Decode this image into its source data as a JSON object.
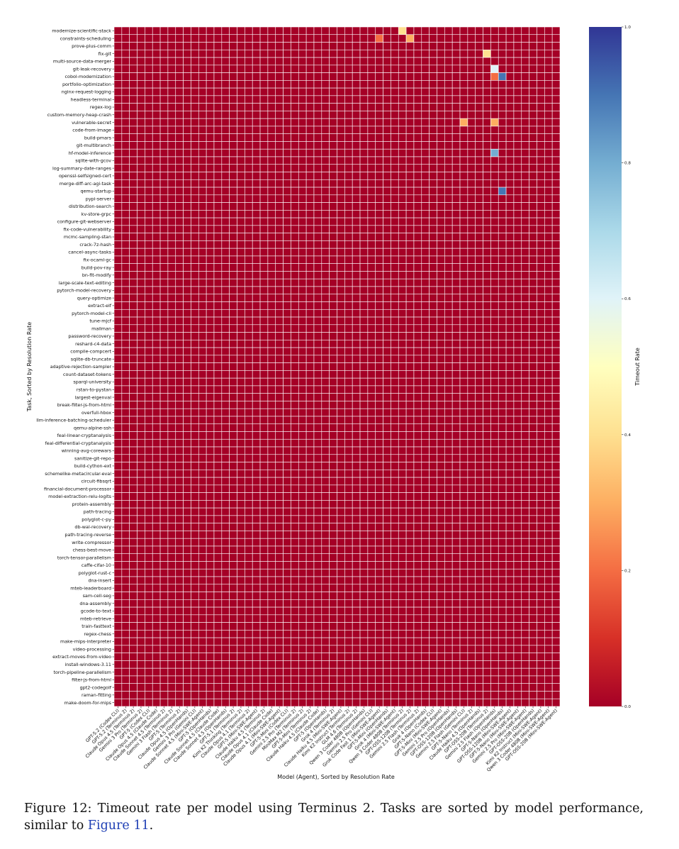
{
  "chart_data": {
    "type": "heatmap",
    "xlabel": "Model (Agent), Sorted by Resolution Rate",
    "ylabel": "Task, Sorted by Resolution Rate",
    "colorbar_label": "Timeout Rate",
    "colorbar_range": [
      0.0,
      1.0
    ],
    "colorbar_ticks": [
      "0.0",
      "0.2",
      "0.4",
      "0.6",
      "0.8",
      "1.0"
    ],
    "colormap": [
      "#a50026",
      "#d73027",
      "#f46d43",
      "#fdae61",
      "#fee090",
      "#ffffbf",
      "#e0f3f8",
      "#abd9e9",
      "#74add1",
      "#4575b4",
      "#313695"
    ],
    "grid_line_color": "#ffffff",
    "tasks": [
      "modernize-scientific-stack",
      "constraints-scheduling",
      "prove-plus-comm",
      "fix-git",
      "multi-source-data-merger",
      "git-leak-recovery",
      "cobol-modernization",
      "portfolio-optimization",
      "nginx-request-logging",
      "headless-terminal",
      "regex-log",
      "custom-memory-heap-crash",
      "vulnerable-secret",
      "code-from-image",
      "build-pmars",
      "git-multibranch",
      "hf-model-inference",
      "sqlite-with-gcov",
      "log-summary-date-ranges",
      "openssl-selfsigned-cert",
      "merge-diff-arc-agi-task",
      "qemu-startup",
      "pypi-server",
      "distribution-search",
      "kv-store-grpc",
      "configure-git-webserver",
      "fix-code-vulnerability",
      "mcmc-sampling-stan",
      "crack-7z-hash",
      "cancel-async-tasks",
      "fix-ocaml-gc",
      "build-pov-ray",
      "bn-fit-modify",
      "large-scale-text-editing",
      "pytorch-model-recovery",
      "query-optimize",
      "extract-elf",
      "pytorch-model-cli",
      "tune-mjcf",
      "mailman",
      "password-recovery",
      "reshard-c4-data",
      "compile-compcert",
      "sqlite-db-truncate",
      "adaptive-rejection-sampler",
      "count-dataset-tokens",
      "sparql-university",
      "rstan-to-pystan",
      "largest-eigenval",
      "break-filter-js-from-html",
      "overfull-hbox",
      "llm-inference-batching-scheduler",
      "qemu-alpine-ssh",
      "feal-linear-cryptanalysis",
      "feal-differential-cryptanalysis",
      "winning-avg-corewars",
      "sanitize-git-repo",
      "build-cython-ext",
      "schemelike-metacircular-eval",
      "circuit-fibsqrt",
      "financial-document-processor",
      "model-extraction-relu-logits",
      "protein-assembly",
      "path-tracing",
      "polyglot-c-py",
      "db-wal-recovery",
      "path-tracing-reverse",
      "write-compressor",
      "chess-best-move",
      "torch-tensor-parallelism",
      "caffe-cifar-10",
      "polyglot-rust-c",
      "dna-insert",
      "mteb-leaderboard",
      "sam-cell-seg",
      "dna-assembly",
      "gcode-to-text",
      "mteb-retrieve",
      "train-fasttext",
      "regex-chess",
      "make-mips-interpreter",
      "video-processing",
      "extract-moves-from-video",
      "install-windows-3.11",
      "torch-pipeline-parallelism",
      "filter-js-from-html",
      "gpt2-codegolf",
      "raman-fitting",
      "make-doom-for-mips"
    ],
    "models": [
      "GPT-5.2 (Codex CLI)",
      "GPT-5.2 (Terminus 2)",
      "Claude Opus 4.5 (Terminus 2)",
      "Gemini 3 Pro (Terminus 2)",
      "GPT-5 (Codex CLI)",
      "Claude Opus 4.5 (Claude Code)",
      "Claude Sonnet 4.5 (Terminus 2)",
      "Gemini 3 Flash (Terminus 2)",
      "GPT-5 (Terminus 2)",
      "Claude Opus 4.5 (OpenHands)",
      "Gemini 3 Pro (Gemini CLI)",
      "Claude Sonnet 4.5 (Mini-SWE-Agent)",
      "GPT-5 (OpenHands)",
      "Claude Sonnet 4.5 (Claude Code)",
      "Claude Sonnet 4.5 (OpenHands)",
      "GPT-5.1 (Terminus 2)",
      "Kimi K2 Thinking (Terminus 2)",
      "Claude Opus 4.1 (Terminus 2)",
      "GPT-5 (Mini-SWE-Agent)",
      "Claude Haiku 4.5 (Terminus 2)",
      "Claude Opus 4.1 (Claude Code)",
      "Claude Opus 4.1 (Mini-SWE-Agent)",
      "GPT-5-Mini (Codex CLI)",
      "Gemini 2.5 Pro (Terminus 2)",
      "MiniMax M2 (Terminus 2)",
      "GPT-5-Mini (Terminus 2)",
      "Claude Haiku 4.5 (Claude Code)",
      "GPT-5 (OpenHands)",
      "Grok 4 (Terminus 2)",
      "Claude Haiku 4.5 (Mini-SWE-Agent)",
      "Kimi K2 Instruct (Terminus 2)",
      "GLM 4.6 (Terminus 2)",
      "Qwen 3 Coder 480B (OpenHands)",
      "Gemini 2.5 Pro (Gemini CLI)",
      "Grok Code Fast 1 (Mini-SWE-Agent)",
      "GPT-5-Mini (OpenHands)",
      "Grok 4 (Mini-SWE-Agent)",
      "Qwen 3 Coder 480B (Terminus 2)",
      "GPT-OSS-120B (Terminus 2)",
      "Gemini 2.5 Flash (Terminus 2)",
      "Grok 4 (OpenHands)",
      "GPT-5-Nano (Codex CLI)",
      "GPT-5-Mini (Mini-SWE-Agent)",
      "Gemini 2.5 Pro (OpenHands)",
      "GPT-OSS-120B (OpenHands)",
      "Gemini 2.5 Flash (Gemini CLI)",
      "GPT-5-Nano (Terminus 2)",
      "Claude Haiku 4.5 (OpenHands)",
      "GPT-OSS-20B (Terminus 2)",
      "Gemini 2.5 Flash (OpenHands)",
      "GPT-5-Nano (OpenHands)",
      "GPT-OSS-120B (Mini-SWE-Agent)",
      "GPT-5-Nano (Mini-SWE-Agent)",
      "Gemini 2.5 Pro (Mini-SWE-Agent)",
      "GPT-OSS-20B (OpenHands)",
      "Kimi K2 Instruct (Mini-SWE-Agent)",
      "Qwen 3 Coder 480B (Mini-SWE-Agent)",
      "GPT-OSS-20B (Mini-SWE-Agent)"
    ],
    "x_tick_labels": [
      "GPT-5.2 (Codex CLI)",
      "GPT-5.2 (Terminus 2)",
      "Claude Opus 4.5 (Terminus 2)",
      "Gemini 3 Pro (Terminus 2)",
      "GPT-5 (Codex CLI)",
      "Claude Opus 4.5 (Claude Code)",
      "Claude Sonnet 4.5 (Terminus 2)",
      "Gemini 3 Flash (Terminus 2)",
      "GPT-5 (Terminus 2)",
      "Claude Opus 4.5 (OpenHands)",
      "Gemini 3 Pro (Gemini CLI)",
      "Claude Sonnet 4.5 (Mini-SWE-Agent)",
      "GPT-5 (OpenHands)",
      "Claude Sonnet 4.5 (Claude Code)",
      "Claude Sonnet 4.5 (OpenHands)",
      "GPT-5.1 (Terminus 2)",
      "Kimi K2 Thinking (Terminus 2)",
      "Claude Opus 4.1 (Terminus 2)",
      "GPT-5 (Mini-SWE-Agent)",
      "Claude Haiku 4.5 (Terminus 2)",
      "Claude Opus 4.1 (Claude Code)",
      "Claude Opus 4.1 (Mini-SWE-Agent)",
      "GPT-5-Mini (Codex CLI)",
      "Gemini 2.5 Pro (Terminus 2)",
      "MiniMax M2 (Terminus 2)",
      "GPT-5-Mini (Terminus 2)",
      "Claude Haiku 4.5 (Claude Code)",
      "GPT-5 (OpenHands)",
      "Grok 4 (Terminus 2)",
      "Claude Haiku 4.5 (Mini-SWE-Agent)",
      "Kimi K2 Instruct (Terminus 2)",
      "GLM 4.6 (Terminus 2)",
      "Qwen 3 Coder 480B (OpenHands)",
      "Gemini 2.5 Pro (Gemini CLI)",
      "Grok Code Fast 1 (Mini-SWE-Agent)",
      "GPT-5-Mini (OpenHands)",
      "Grok 4 (Mini-SWE-Agent)",
      "Qwen 3 Coder 480B (Terminus 2)",
      "GPT-OSS-120B (Terminus 2)",
      "Gemini 2.5 Flash (Terminus 2)",
      "Grok 4 (OpenHands)",
      "GPT-5-Nano (Codex CLI)",
      "GPT-5-Mini (Mini-SWE-Agent)",
      "Gemini 2.5 Pro (OpenHands)",
      "GPT-OSS-120B (OpenHands)",
      "Gemini 2.5 Flash (Gemini CLI)",
      "GPT-5-Nano (Terminus 2)",
      "Claude Haiku 4.5 (OpenHands)",
      "GPT-OSS-20B (Terminus 2)",
      "Gemini 2.5 Flash (OpenHands)",
      "GPT-5-Nano (OpenHands)",
      "GPT-OSS-120B (Mini-SWE-Agent)",
      "GPT-5-Nano (Mini-SWE-Agent)",
      "Gemini 2.5 Pro (Mini-SWE-Agent)",
      "GPT-OSS-20B (OpenHands)",
      "Kimi K2 Instruct (Mini-SWE-Agent)",
      "Qwen 3 Coder 480B (Mini-SWE-Agent)",
      "GPT-OSS-20B (Mini-SWE-Agent)"
    ],
    "values_encoding": "Rows correspond to tasks (top to bottom), columns to models (left to right). Each row string has one character per model; 0 = 0.0, 1 = 0.1, ..., 9 = 0.9, a = 1.0 (timeout rate).",
    "values": [
      "0000000000000000000000000000000000000400000000000000000000",
      "0000000000000000000000000000000000200030000000000000000000",
      "0000000000000000000000000000000000000000000000000000000000",
      "0000000000000000000000000000000000000000000000004000000000",
      "0000000000000000000000000000000000000000000000000000000000",
      "0000000000000000000000000000000000000000000000000600000000",
      "0000000000000000000000000000000000000000000000000290000000",
      "0000000000000000000000000000000000000000000000000000000000",
      "0000000000000000000000000000000000000000000000000000000000",
      "0000000000000000000000000000000000000000000000000000000000",
      "0000000000000000000000000000000000000000000000000000000000",
      "0000000000000000000000000000000000000000000000000000000000",
      "0000000000000000000000000000000000000000000003000300000000",
      "0000000000000000000000000000000000000000000000000000000000",
      "0000000000000000000000000000000000000000000000000000000000",
      "0000000000000000000000000000000000000000000000000000000000",
      "0000000000000000000000000000000000000000000000000800000000",
      "0000000000000000000000000000000000000000000000000000000000",
      "0000000000000000000000000000000000000000000000000000000000",
      "0000000000000000000000000000000000000000000000000000000000",
      "0000000000000000000000000000000000000000000000000000000000",
      "0000000000000000000000000000000000000000000000000090000000",
      "0000000000000000000000000000000000000000000000000000000000",
      "0000000000000000000000000000000000000000000000000000000000",
      "0000000000000000000000000000000000000000000000000000000000",
      "0000000000000000000000000000000000000000000000000000000000",
      "0000000000000000000000000000000000000000000000000000000000",
      "0000000000000000000000000000000000000000000000000000000000",
      "0000000000000000000000000000000000000000000000000000000000",
      "0000000000000000000000000000000000000000000000000000000000",
      "0000000000000000000000000000000000000000000000000000000000",
      "0000000000000000000000000000000000000000000000000000000000",
      "0000000000000000000000000000000000000000000000000000000000",
      "0000000000000000000000000000000000000000000000000000000000",
      "0000000000000000000000000000000000000000000000000000000000",
      "0000000000000000000000000000000000000000000000000000000000",
      "0000000000000000000000000000000000000000000000000000000000",
      "0000000000000000000000000000000000000000000000000000000000",
      "0000000000000000000000000000000000000000000000000000000000",
      "0000000000000000000000000000000000000000000000000000000000",
      "0000000000000000000000000000000000000000000000000000000000",
      "0000000000000000000000000000000000000000000000000000000000",
      "0000000000000000000000000000000000000000000000000000000000",
      "0000000000000000000000000000000000000000000000000000000000",
      "0000000000000000000000000000000000000000000000000000000000",
      "0000000000000000000000000000000000000000000000000000000000",
      "0000000000000000000000000000000000000000000000000000000000",
      "0000000000000000000000000000000000000000000000000000000000",
      "0000000000000000000000000000000000000000000000000000000000",
      "0000000000000000000000000000000000000000000000000000000000",
      "0000000000000000000000000000000000000000000000000000000000",
      "0000000000000000000000000000000000000000000000000000000000",
      "0000000000000000000000000000000000000000000000000000000000",
      "0000000000000000000000000000000000000000000000000000000000",
      "0000000000000000000000000000000000000000000000000000000000",
      "0000000000000000000000000000000000000000000000000000000000",
      "0000000000000000000000000000000000000000000000000000000000",
      "0000000000000000000000000000000000000000000000000000000000",
      "0000000000000000000000000000000000000000000000000000000000",
      "0000000000000000000000000000000000000000000000000000000000",
      "0000000000000000000000000000000000000000000000000000000000",
      "0000000000000000000000000000000000000000000000000000000000",
      "0000000000000000000000000000000000000000000000000000000000",
      "0000000000000000000000000000000000000000000000000000000000",
      "0000000000000000000000000000000000000000000000000000000000",
      "0000000000000000000000000000000000000000000000000000000000",
      "0000000000000000000000000000000000000000000000000000000000",
      "0000000000000000000000000000000000000000000000000000000000",
      "0000000000000000000000000000000000000000000000000000000000",
      "0000000000000000000000000000000000000000000000000000000000",
      "0000000000000000000000000000000000000000000000000000000000",
      "0000000000000000000000000000000000000000000000000000000000",
      "0000000000000000000000000000000000000000000000000000000000",
      "0000000000000000000000000000000000000000000000000000000000",
      "0000000000000000000000000000000000000000000000000000000000",
      "0000000000000000000000000000000000000000000000000000000000",
      "0000000000000000000000000000000000000000000000000000000000",
      "0000000000000000000000000000000000000000000000000000000000",
      "0000000000000000000000000000000000000000000000000000000000",
      "0000000000000000000000000000000000000000000000000000000000",
      "0000000000000000000000000000000000000000000000000000000000",
      "0000000000000000000000000000000000000000000000000000000000",
      "0000000000000000000000000000000000000000000000000000000000",
      "0000000000000000000000000000000000000000000000000000000000",
      "0000000000000000000000000000000000000000000000000000000000",
      "0000000000000000000000000000000000000000000000000000000000",
      "0000000000000000000000000000000000000000000000000000000000",
      "0000000000000000000000000000000000000000000000000000000000",
      "0000000000000000000000000000000000000000000000000000000000"
    ]
  },
  "caption": {
    "main": "Figure 12: Timeout rate per model using Terminus 2. Tasks are sorted by model performance, similar to ",
    "ref": "Figure 11",
    "end": "."
  }
}
